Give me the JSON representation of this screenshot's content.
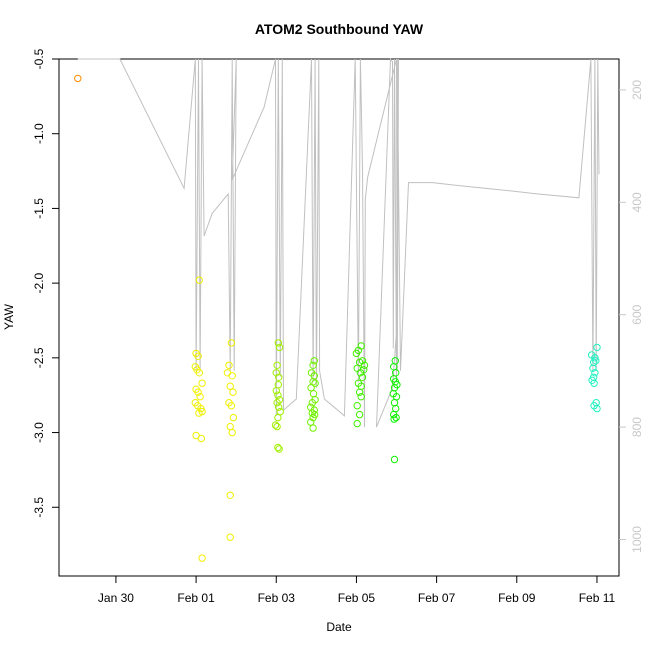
{
  "chart_data": {
    "type": "scatter",
    "title": "ATOM2 Southbound YAW",
    "xlabel": "Date",
    "ylabel": "YAW",
    "x_ticks": [
      "Jan 30",
      "Feb 01",
      "Feb 03",
      "Feb 05",
      "Feb 07",
      "Feb 09",
      "Feb 11"
    ],
    "x_tick_days": [
      30,
      32,
      34,
      36,
      38,
      40,
      42
    ],
    "xlim": [
      28.58,
      42.55
    ],
    "ylim": [
      -3.96,
      -0.5
    ],
    "y_ticks": [
      -0.5,
      -1.0,
      -1.5,
      -2.0,
      -2.5,
      -3.0,
      -3.5
    ],
    "y_tick_labels": [
      "-0.5",
      "-1.0",
      "-1.5",
      "-2.0",
      "-2.5",
      "-3.0",
      "-3.5"
    ],
    "y2_ticks": [
      200,
      400,
      600,
      800,
      1000
    ],
    "y2_tick_labels": [
      "200",
      "400",
      "600",
      "800",
      "1000"
    ],
    "y2lim": [
      1065,
      145
    ],
    "grid": false,
    "series": [
      {
        "color": "#ff8c00",
        "points": [
          [
            29.05,
            -0.63
          ]
        ]
      },
      {
        "color": "#f0f000",
        "points": [
          [
            32.0,
            -2.47
          ],
          [
            32.05,
            -2.49
          ],
          [
            31.98,
            -2.56
          ],
          [
            32.02,
            -2.58
          ],
          [
            32.08,
            -2.6
          ],
          [
            32.15,
            -2.67
          ],
          [
            32.0,
            -2.71
          ],
          [
            32.05,
            -2.73
          ],
          [
            32.1,
            -2.76
          ],
          [
            31.98,
            -2.8
          ],
          [
            32.04,
            -2.82
          ],
          [
            32.12,
            -2.84
          ],
          [
            32.07,
            -2.87
          ],
          [
            32.15,
            -2.86
          ],
          [
            32.0,
            -3.02
          ],
          [
            32.13,
            -3.04
          ],
          [
            32.08,
            -1.98
          ],
          [
            32.15,
            -3.84
          ],
          [
            32.88,
            -2.4
          ],
          [
            32.82,
            -2.55
          ],
          [
            32.78,
            -2.6
          ],
          [
            32.9,
            -2.62
          ],
          [
            32.85,
            -2.69
          ],
          [
            32.92,
            -2.73
          ],
          [
            32.82,
            -2.8
          ],
          [
            32.88,
            -2.82
          ],
          [
            32.93,
            -2.9
          ],
          [
            32.85,
            -2.96
          ],
          [
            32.9,
            -3.0
          ],
          [
            32.85,
            -3.42
          ],
          [
            32.85,
            -3.7
          ]
        ]
      },
      {
        "color": "#a0f000",
        "points": [
          [
            34.05,
            -2.4
          ],
          [
            34.08,
            -2.43
          ],
          [
            34.02,
            -2.55
          ],
          [
            34.0,
            -2.6
          ],
          [
            34.06,
            -2.63
          ],
          [
            34.05,
            -2.68
          ],
          [
            34.0,
            -2.72
          ],
          [
            34.04,
            -2.75
          ],
          [
            34.08,
            -2.78
          ],
          [
            34.02,
            -2.8
          ],
          [
            34.06,
            -2.83
          ],
          [
            34.1,
            -2.86
          ],
          [
            34.04,
            -2.9
          ],
          [
            33.98,
            -2.95
          ],
          [
            34.02,
            -2.96
          ],
          [
            34.04,
            -3.1
          ],
          [
            34.07,
            -3.11
          ]
        ]
      },
      {
        "color": "#70f000",
        "points": [
          [
            34.95,
            -2.52
          ],
          [
            34.92,
            -2.55
          ],
          [
            34.88,
            -2.6
          ],
          [
            34.95,
            -2.62
          ],
          [
            34.92,
            -2.66
          ],
          [
            34.97,
            -2.67
          ],
          [
            34.87,
            -2.7
          ],
          [
            34.93,
            -2.74
          ],
          [
            34.97,
            -2.78
          ],
          [
            34.9,
            -2.8
          ],
          [
            34.86,
            -2.83
          ],
          [
            34.95,
            -2.85
          ],
          [
            34.9,
            -2.87
          ],
          [
            34.96,
            -2.88
          ],
          [
            34.92,
            -2.9
          ],
          [
            34.86,
            -2.93
          ],
          [
            34.92,
            -2.97
          ]
        ]
      },
      {
        "color": "#40f000",
        "points": [
          [
            36.12,
            -2.42
          ],
          [
            36.05,
            -2.45
          ],
          [
            36.0,
            -2.47
          ],
          [
            36.15,
            -2.52
          ],
          [
            36.08,
            -2.53
          ],
          [
            36.2,
            -2.55
          ],
          [
            36.02,
            -2.57
          ],
          [
            36.18,
            -2.58
          ],
          [
            36.1,
            -2.6
          ],
          [
            36.15,
            -2.63
          ],
          [
            36.05,
            -2.67
          ],
          [
            36.12,
            -2.69
          ],
          [
            36.08,
            -2.73
          ],
          [
            36.12,
            -2.76
          ],
          [
            36.02,
            -2.82
          ],
          [
            36.08,
            -2.88
          ],
          [
            36.02,
            -2.94
          ]
        ]
      },
      {
        "color": "#10f000",
        "points": [
          [
            36.97,
            -2.52
          ],
          [
            36.93,
            -2.56
          ],
          [
            36.98,
            -2.6
          ],
          [
            36.93,
            -2.64
          ],
          [
            36.97,
            -2.66
          ],
          [
            37.01,
            -2.68
          ],
          [
            36.95,
            -2.7
          ],
          [
            36.92,
            -2.74
          ],
          [
            37.0,
            -2.76
          ],
          [
            36.95,
            -2.8
          ],
          [
            36.98,
            -2.84
          ],
          [
            36.93,
            -2.88
          ],
          [
            36.99,
            -2.9
          ],
          [
            36.94,
            -2.91
          ],
          [
            36.95,
            -3.18
          ]
        ]
      },
      {
        "color": "#20f0c0",
        "points": [
          [
            41.87,
            -2.48
          ],
          [
            41.95,
            -2.5
          ],
          [
            41.92,
            -2.53
          ],
          [
            41.97,
            -2.52
          ],
          [
            41.9,
            -2.57
          ],
          [
            41.95,
            -2.6
          ],
          [
            41.92,
            -2.63
          ],
          [
            41.88,
            -2.65
          ],
          [
            41.93,
            -2.67
          ],
          [
            42.0,
            -2.43
          ],
          [
            41.98,
            -2.8
          ],
          [
            41.93,
            -2.82
          ],
          [
            42.0,
            -2.84
          ]
        ]
      }
    ],
    "line_series": {
      "color": "#c0c0c0",
      "points": [
        [
          29.05,
          145
        ],
        [
          30.1,
          145
        ],
        [
          31.7,
          375
        ],
        [
          31.98,
          145
        ],
        [
          32.0,
          700
        ],
        [
          32.06,
          145
        ],
        [
          32.1,
          700
        ],
        [
          32.15,
          145
        ],
        [
          32.2,
          460
        ],
        [
          32.4,
          420
        ],
        [
          32.8,
          385
        ],
        [
          32.85,
          700
        ],
        [
          32.9,
          145
        ],
        [
          32.95,
          700
        ],
        [
          33.0,
          145
        ],
        [
          32.9,
          360
        ],
        [
          33.7,
          230
        ],
        [
          33.98,
          145
        ],
        [
          34.0,
          780
        ],
        [
          34.05,
          145
        ],
        [
          34.1,
          710
        ],
        [
          34.15,
          145
        ],
        [
          34.18,
          770
        ],
        [
          34.5,
          750
        ],
        [
          34.88,
          145
        ],
        [
          34.92,
          720
        ],
        [
          34.97,
          145
        ],
        [
          35.0,
          730
        ],
        [
          35.06,
          145
        ],
        [
          35.08,
          700
        ],
        [
          35.2,
          750
        ],
        [
          35.7,
          780
        ],
        [
          35.97,
          145
        ],
        [
          36.05,
          720
        ],
        [
          36.1,
          145
        ],
        [
          36.15,
          340
        ],
        [
          36.2,
          800
        ],
        [
          36.22,
          395
        ],
        [
          36.28,
          355
        ],
        [
          37.0,
          145
        ],
        [
          37.02,
          700
        ],
        [
          37.05,
          145
        ],
        [
          37.0,
          630
        ],
        [
          36.9,
          730
        ],
        [
          36.5,
          800
        ],
        [
          36.85,
          145
        ],
        [
          36.9,
          150
        ],
        [
          36.92,
          660
        ],
        [
          36.95,
          145
        ],
        [
          37.0,
          720
        ],
        [
          37.02,
          145
        ],
        [
          37.1,
          700
        ],
        [
          37.3,
          365
        ],
        [
          37.9,
          365
        ],
        [
          38.5,
          370
        ],
        [
          39.2,
          375
        ],
        [
          39.9,
          380
        ],
        [
          40.5,
          385
        ],
        [
          41.55,
          392
        ],
        [
          41.85,
          145
        ],
        [
          41.9,
          700
        ],
        [
          41.95,
          145
        ],
        [
          41.98,
          700
        ],
        [
          42.02,
          145
        ],
        [
          42.05,
          350
        ]
      ]
    }
  }
}
